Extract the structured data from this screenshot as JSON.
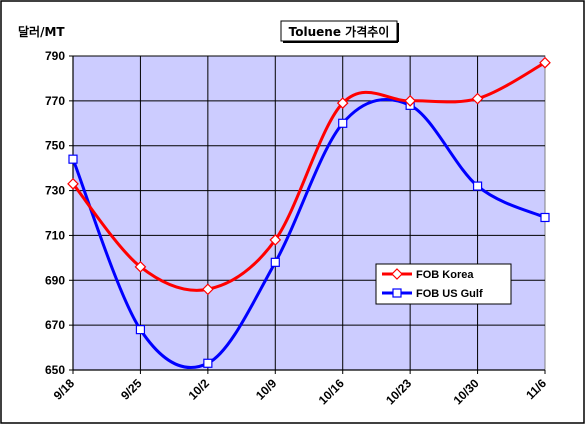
{
  "chart_data": {
    "type": "line",
    "title": "Toluene 가격추이",
    "ylabel": "달러/MT",
    "xlabel": "",
    "categories": [
      "9/18",
      "9/25",
      "10/2",
      "10/9",
      "10/16",
      "10/23",
      "10/30",
      "11/6"
    ],
    "ylim": [
      650,
      790
    ],
    "yticks": [
      650,
      670,
      690,
      710,
      730,
      750,
      770,
      790
    ],
    "grid": true,
    "legend_position": "bottom-right",
    "series": [
      {
        "name": "FOB Korea",
        "color": "#ff0000",
        "marker": "diamond",
        "values": [
          733,
          696,
          686,
          708,
          769,
          770,
          771,
          787
        ]
      },
      {
        "name": "FOB US Gulf",
        "color": "#0000ff",
        "marker": "square",
        "values": [
          744,
          668,
          653,
          698,
          760,
          768,
          732,
          718
        ]
      }
    ],
    "colors": {
      "plot_background": "#ccccff",
      "frame": "#000000"
    }
  }
}
